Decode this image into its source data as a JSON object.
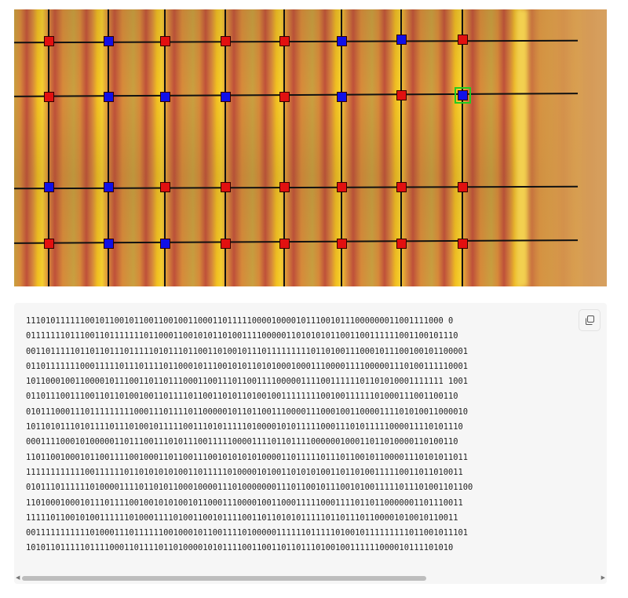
{
  "image": {
    "square_colors": {
      "red": "#e21010",
      "blue": "#1010e8",
      "selected_outline": "#22cc22"
    },
    "grid_rows": [
      [
        "red",
        "blue",
        "red",
        "red",
        "red",
        "blue",
        "blue",
        "red"
      ],
      [
        "red",
        "blue",
        "blue",
        "blue",
        "red",
        "blue",
        "red",
        "blue"
      ],
      [
        "blue",
        "blue",
        "red",
        "red",
        "red",
        "red",
        "red",
        "red"
      ],
      [
        "red",
        "blue",
        "blue",
        "red",
        "red",
        "red",
        "red",
        "red"
      ]
    ],
    "selected_cell": {
      "row": 2,
      "col": 8
    }
  },
  "code_block": {
    "copy_icon": "copy-icon",
    "lines": [
      "1110101111110010110010110011001001100011011111000010000101110010111000000011001111000 0",
      "0111111101110011011111110110001100101011010011110000011010101011001100111111001100101110",
      "001101111101101101110111110101110110011010010111011111111101101001110001011100100101100001",
      "011011111110001111101110111101100010111001010110101000100011100001111000001110100111110001",
      "1011000100110000101110011011011100011001110110011110000011110011111101101010001111111 1001",
      "0110111001110011011010010011011110110011010110100100111111110010011111101000111001100110",
      "010111000111011111111100011101111011000001011011001110000111000100110000111101010011000010",
      "10110101110101111011101001011111001110101111101000010101111100011101011111000011110101110",
      "0001111000101000001101110011101011100111110000111101101111000000100011011010000110100110",
      "110110010001011001111001000110110011100101010101000011011111011101100101100001110101011011",
      "11111111111100111111011010101010011011111010000101001101010100110110100111110011011010011",
      "0101110111111010000111101101011000100001110100000001110110010111001010011111011101001101100",
      "11010001000101110111100100101010010110001110000100110001111100011110110110000001101110011",
      "1111101100101001111110100011110100110010111100110110101011111011011101100001010010110011",
      "001111111111101000111011111100100010110011110100000111111011111010010111111111011001011101",
      "101011011111011110001101111011010000101011110011001101101110100100111111000010111101010"
    ]
  }
}
